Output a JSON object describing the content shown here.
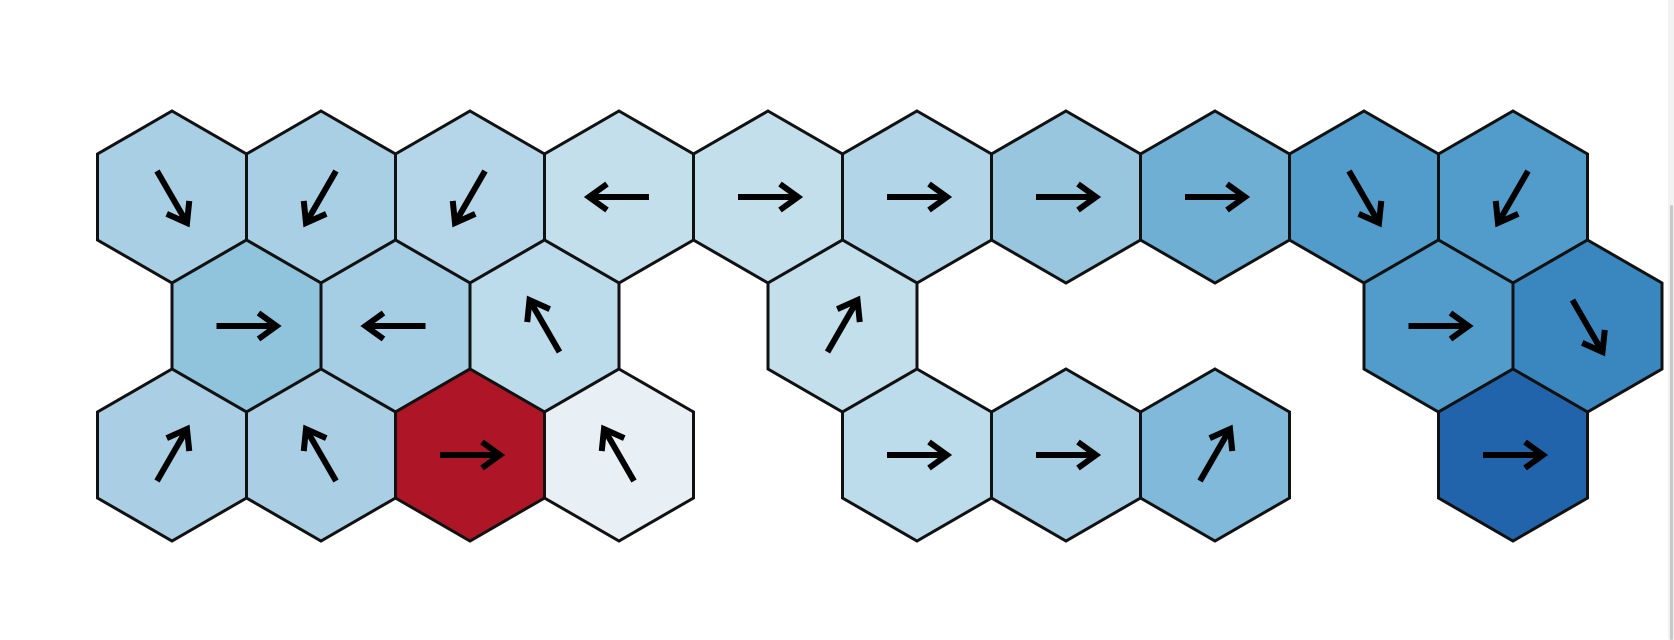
{
  "board": {
    "cells": [
      {
        "row": 0,
        "col": 0,
        "color": "#a9cfe4",
        "arrow": "down-right"
      },
      {
        "row": 0,
        "col": 1,
        "color": "#a9cfe4",
        "arrow": "down-left"
      },
      {
        "row": 0,
        "col": 2,
        "color": "#b5d6e8",
        "arrow": "down-left"
      },
      {
        "row": 0,
        "col": 3,
        "color": "#c4dfec",
        "arrow": "left"
      },
      {
        "row": 0,
        "col": 4,
        "color": "#c4dfec",
        "arrow": "right"
      },
      {
        "row": 0,
        "col": 5,
        "color": "#b2d5e8",
        "arrow": "right"
      },
      {
        "row": 0,
        "col": 6,
        "color": "#99c6df",
        "arrow": "right"
      },
      {
        "row": 0,
        "col": 7,
        "color": "#6fafd4",
        "arrow": "right"
      },
      {
        "row": 0,
        "col": 8,
        "color": "#519cca",
        "arrow": "down-right"
      },
      {
        "row": 0,
        "col": 9,
        "color": "#519cca",
        "arrow": "down-left"
      },
      {
        "row": 1,
        "col": 0,
        "color": "#90c3dc",
        "arrow": "right"
      },
      {
        "row": 1,
        "col": 1,
        "color": "#a5cde3",
        "arrow": "left"
      },
      {
        "row": 1,
        "col": 2,
        "color": "#bcdbeb",
        "arrow": "up-left"
      },
      {
        "row": 1,
        "col": 4,
        "color": "#c4dfec",
        "arrow": "up-right"
      },
      {
        "row": 1,
        "col": 8,
        "color": "#519cca",
        "arrow": "right"
      },
      {
        "row": 1,
        "col": 9,
        "color": "#3a86bf",
        "arrow": "down-right"
      },
      {
        "row": 2,
        "col": 0,
        "color": "#aacfe5",
        "arrow": "up-right"
      },
      {
        "row": 2,
        "col": 1,
        "color": "#aacfe5",
        "arrow": "up-left"
      },
      {
        "row": 2,
        "col": 2,
        "color": "#ae1627",
        "arrow": "right"
      },
      {
        "row": 2,
        "col": 3,
        "color": "#e9f0f5",
        "arrow": "up-left"
      },
      {
        "row": 2,
        "col": 5,
        "color": "#bcdbeb",
        "arrow": "right"
      },
      {
        "row": 2,
        "col": 6,
        "color": "#a5cde3",
        "arrow": "right"
      },
      {
        "row": 2,
        "col": 7,
        "color": "#80b9d9",
        "arrow": "up-right"
      },
      {
        "row": 2,
        "col": 9,
        "color": "#2264ab",
        "arrow": "right"
      }
    ]
  }
}
